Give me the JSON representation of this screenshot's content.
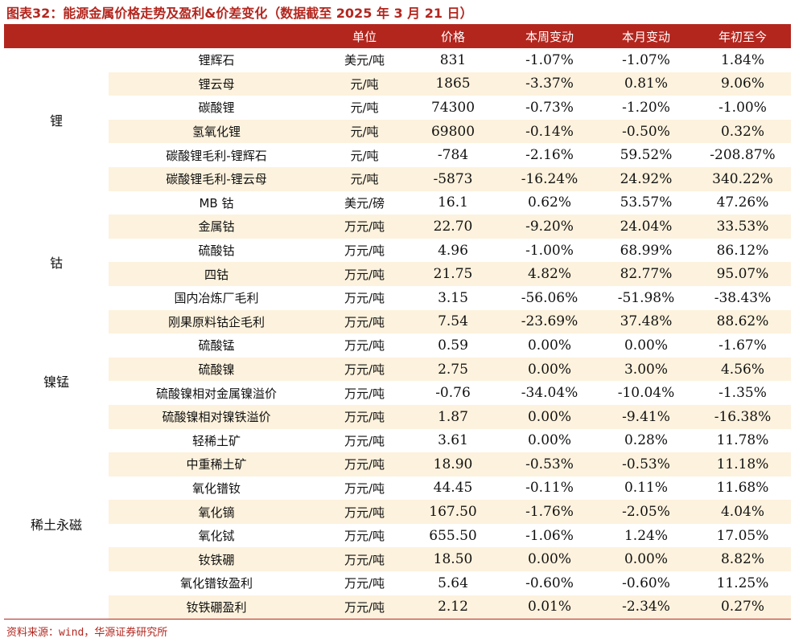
{
  "title": "图表32：能源金属价格走势及盈利&价差变化（数据截至 2025 年 3 月 21 日）",
  "headers": [
    "",
    "",
    "单位",
    "价格",
    "本周变动",
    "本月变动",
    "年初至今"
  ],
  "groups": [
    {
      "name": "锂",
      "rows": [
        [
          "锂辉石",
          "美元/吨",
          "831",
          "-1.07%",
          "-1.07%",
          "1.84%"
        ],
        [
          "锂云母",
          "元/吨",
          "1865",
          "-3.37%",
          "0.81%",
          "9.06%"
        ],
        [
          "碳酸锂",
          "元/吨",
          "74300",
          "-0.73%",
          "-1.20%",
          "-1.00%"
        ],
        [
          "氢氧化锂",
          "元/吨",
          "69800",
          "-0.14%",
          "-0.50%",
          "0.32%"
        ],
        [
          "碳酸锂毛利-锂辉石",
          "元/吨",
          "-784",
          "-2.16%",
          "59.52%",
          "-208.87%"
        ],
        [
          "碳酸锂毛利-锂云母",
          "元/吨",
          "-5873",
          "-16.24%",
          "24.92%",
          "340.22%"
        ]
      ]
    },
    {
      "name": "钴",
      "rows": [
        [
          "MB 钴",
          "美元/磅",
          "16.1",
          "0.62%",
          "53.57%",
          "47.26%"
        ],
        [
          "金属钴",
          "万元/吨",
          "22.70",
          "-9.20%",
          "24.04%",
          "33.53%"
        ],
        [
          "硫酸钴",
          "万元/吨",
          "4.96",
          "-1.00%",
          "68.99%",
          "86.12%"
        ],
        [
          "四钴",
          "万元/吨",
          "21.75",
          "4.82%",
          "82.77%",
          "95.07%"
        ],
        [
          "国内冶炼厂毛利",
          "万元/吨",
          "3.15",
          "-56.06%",
          "-51.98%",
          "-38.43%"
        ],
        [
          "刚果原料钴企毛利",
          "万元/吨",
          "7.54",
          "-23.69%",
          "37.48%",
          "88.62%"
        ]
      ]
    },
    {
      "name": "镍锰",
      "rows": [
        [
          "硫酸锰",
          "万元/吨",
          "0.59",
          "0.00%",
          "0.00%",
          "-1.67%"
        ],
        [
          "硫酸镍",
          "万元/吨",
          "2.75",
          "0.00%",
          "3.00%",
          "4.56%"
        ],
        [
          "硫酸镍相对金属镍溢价",
          "万元/吨",
          "-0.76",
          "-34.04%",
          "-10.04%",
          "-1.35%"
        ],
        [
          "硫酸镍相对镍铁溢价",
          "万元/吨",
          "1.87",
          "0.00%",
          "-9.41%",
          "-16.38%"
        ]
      ]
    },
    {
      "name": "稀土永磁",
      "rows": [
        [
          "轻稀土矿",
          "万元/吨",
          "3.61",
          "0.00%",
          "0.28%",
          "11.78%"
        ],
        [
          "中重稀土矿",
          "万元/吨",
          "18.90",
          "-0.53%",
          "-0.53%",
          "11.18%"
        ],
        [
          "氧化镨钕",
          "万元/吨",
          "44.45",
          "-0.11%",
          "0.11%",
          "11.68%"
        ],
        [
          "氧化镝",
          "万元/吨",
          "167.50",
          "-1.76%",
          "-2.05%",
          "4.04%"
        ],
        [
          "氧化铽",
          "万元/吨",
          "655.50",
          "-1.06%",
          "1.24%",
          "17.05%"
        ],
        [
          "钕铁硼",
          "万元/吨",
          "18.50",
          "0.00%",
          "0.00%",
          "8.82%"
        ],
        [
          "氧化镨钕盈利",
          "万元/吨",
          "5.64",
          "-0.60%",
          "-0.60%",
          "11.25%"
        ],
        [
          "钕铁硼盈利",
          "万元/吨",
          "2.12",
          "0.01%",
          "-2.34%",
          "0.27%"
        ]
      ]
    }
  ],
  "source": "资料来源：wind，华源证券研究所"
}
